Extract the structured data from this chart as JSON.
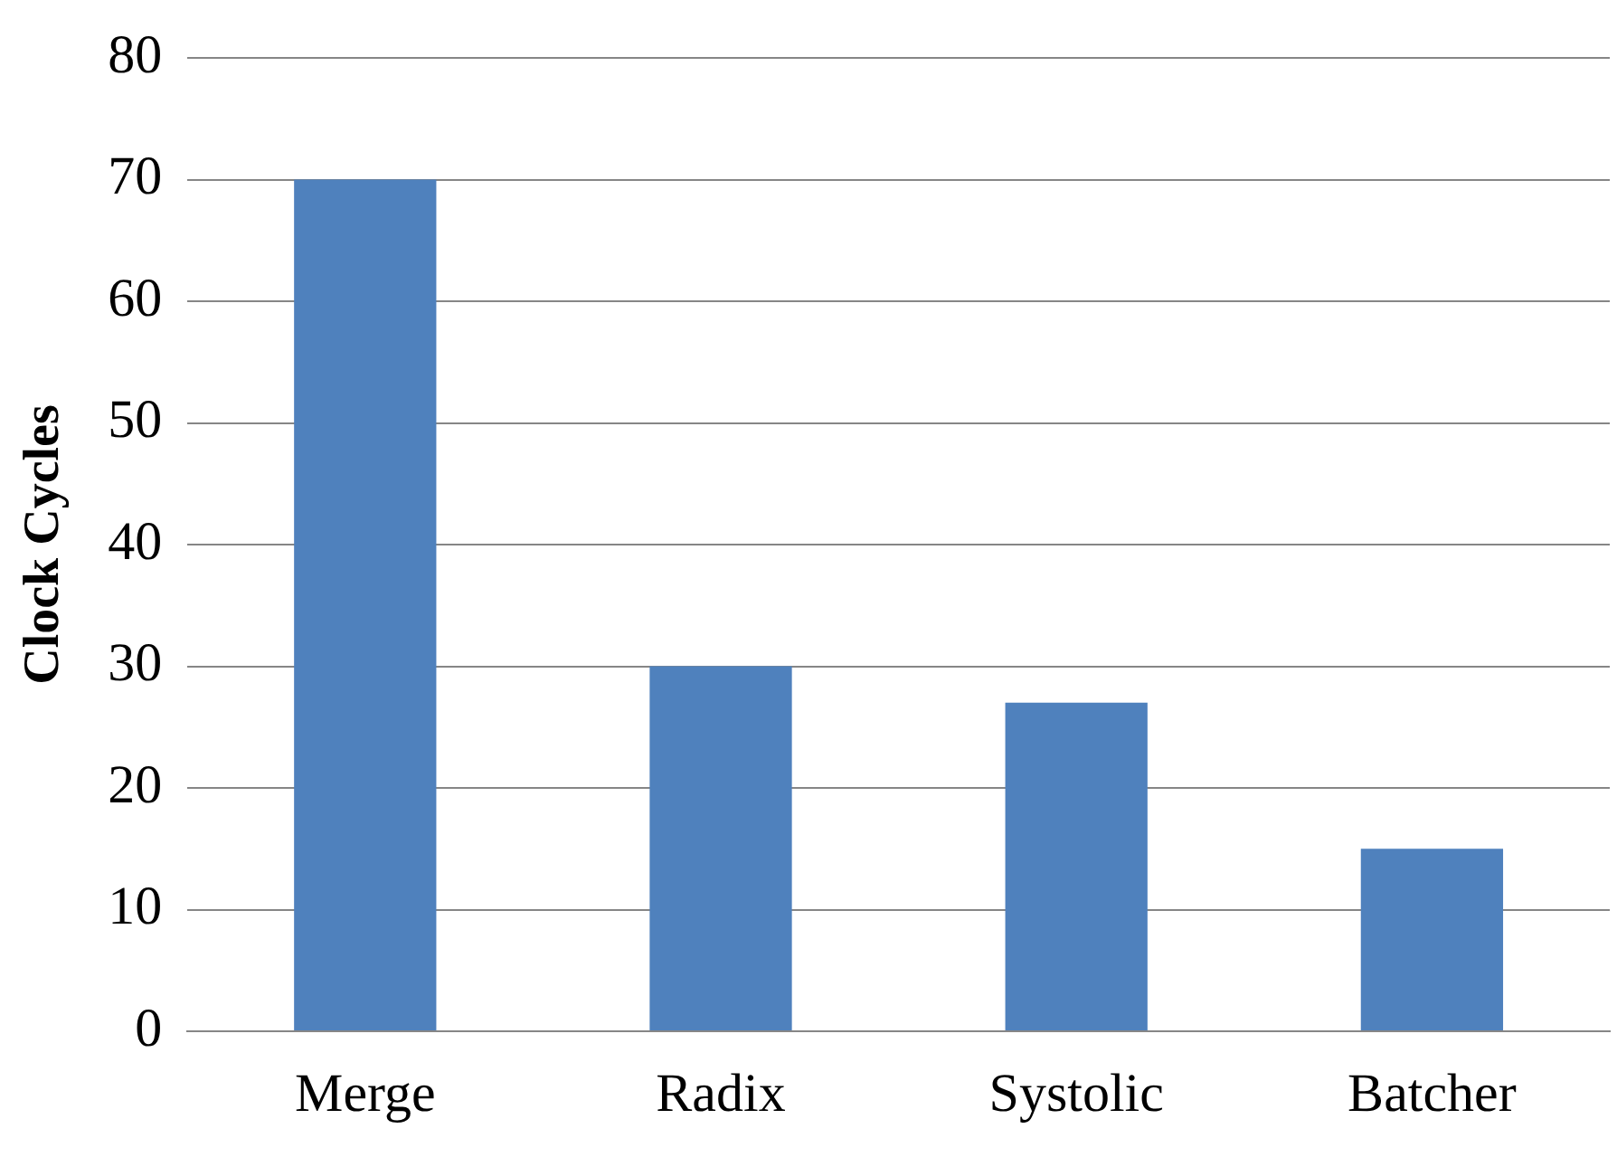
{
  "chart_data": {
    "type": "bar",
    "ylabel": "Clock Cycles",
    "categories": [
      "Merge",
      "Radix",
      "Systolic",
      "Batcher"
    ],
    "values": [
      70,
      30,
      27,
      15
    ],
    "color": "#4f81bd",
    "ylim": [
      0,
      80
    ],
    "yticks": [
      0,
      10,
      20,
      30,
      40,
      50,
      60,
      70,
      80
    ],
    "grid": "y",
    "legend": false
  }
}
